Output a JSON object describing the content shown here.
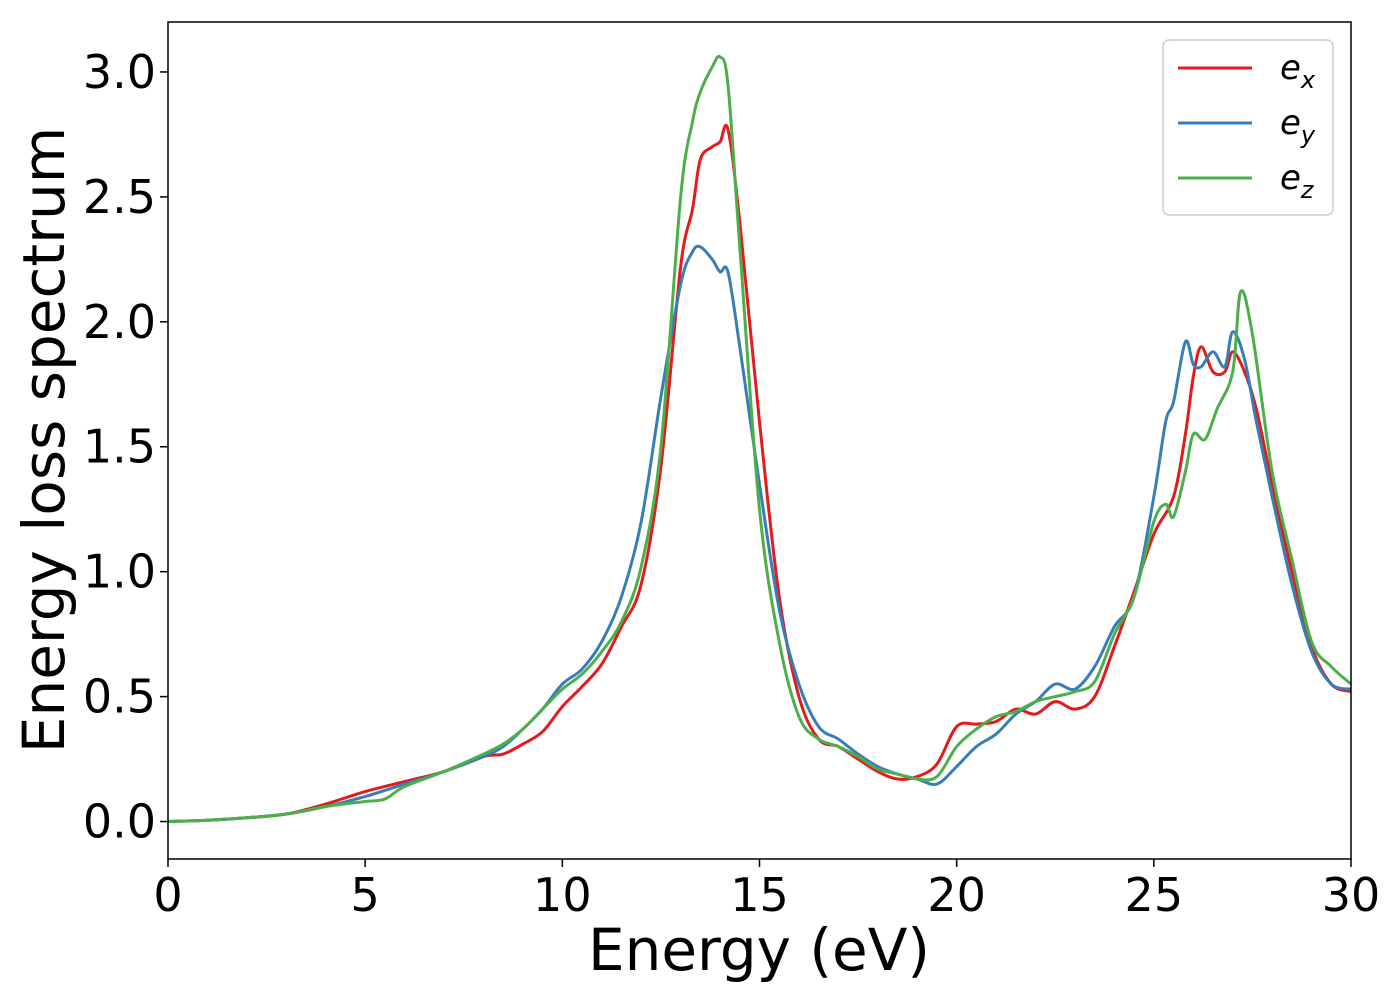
{
  "chart_data": {
    "type": "line",
    "xlabel": "Energy (eV)",
    "ylabel": "Energy loss spectrum",
    "xlim": [
      0,
      30
    ],
    "ylim": [
      -0.15,
      3.2
    ],
    "xticks": [
      0,
      5,
      10,
      15,
      20,
      25,
      30
    ],
    "xtick_labels": [
      "0",
      "5",
      "10",
      "15",
      "20",
      "25",
      "30"
    ],
    "yticks": [
      0.0,
      0.5,
      1.0,
      1.5,
      2.0,
      2.5,
      3.0
    ],
    "ytick_labels": [
      "0.0",
      "0.5",
      "1.0",
      "1.5",
      "2.0",
      "2.5",
      "3.0"
    ],
    "grid": false,
    "legend_position": "top-right",
    "series": [
      {
        "name": "e",
        "subscript": "x",
        "color": "#e41a1c",
        "x": [
          0,
          1,
          2,
          3,
          4,
          5,
          6,
          7,
          8,
          8.5,
          9,
          9.5,
          10,
          10.5,
          11,
          11.5,
          12,
          12.5,
          13,
          13.3,
          13.5,
          13.8,
          14,
          14.2,
          14.5,
          15,
          15.5,
          16,
          16.5,
          17,
          17.5,
          18,
          18.5,
          19,
          19.5,
          20,
          20.5,
          21,
          21.5,
          22,
          22.5,
          23,
          23.5,
          24,
          24.5,
          25,
          25.5,
          25.8,
          26,
          26.2,
          26.5,
          26.8,
          27,
          27.3,
          27.6,
          28,
          28.5,
          29,
          29.5,
          30
        ],
        "y": [
          0,
          0.005,
          0.015,
          0.03,
          0.07,
          0.12,
          0.16,
          0.2,
          0.26,
          0.27,
          0.31,
          0.36,
          0.46,
          0.54,
          0.63,
          0.78,
          0.95,
          1.42,
          2.22,
          2.45,
          2.65,
          2.7,
          2.72,
          2.77,
          2.4,
          1.6,
          0.9,
          0.5,
          0.33,
          0.3,
          0.25,
          0.2,
          0.17,
          0.18,
          0.23,
          0.38,
          0.39,
          0.4,
          0.45,
          0.43,
          0.48,
          0.45,
          0.5,
          0.7,
          0.92,
          1.15,
          1.3,
          1.55,
          1.78,
          1.9,
          1.8,
          1.8,
          1.88,
          1.8,
          1.65,
          1.35,
          1.0,
          0.7,
          0.55,
          0.52
        ]
      },
      {
        "name": "e",
        "subscript": "y",
        "color": "#377eb8",
        "x": [
          0,
          1,
          2,
          3,
          4,
          5,
          6,
          7,
          8,
          8.5,
          9,
          9.5,
          10,
          10.5,
          11,
          11.5,
          12,
          12.5,
          13,
          13.3,
          13.5,
          13.8,
          14,
          14.2,
          14.5,
          15,
          15.5,
          16,
          16.5,
          17,
          17.5,
          18,
          18.5,
          19,
          19.5,
          20,
          20.5,
          21,
          21.5,
          22,
          22.5,
          23,
          23.5,
          24,
          24.5,
          25,
          25.3,
          25.5,
          25.8,
          26,
          26.2,
          26.5,
          26.8,
          27,
          27.3,
          27.6,
          28,
          28.5,
          29,
          29.5,
          30
        ],
        "y": [
          0,
          0.005,
          0.015,
          0.03,
          0.06,
          0.1,
          0.15,
          0.2,
          0.26,
          0.3,
          0.37,
          0.45,
          0.55,
          0.61,
          0.72,
          0.9,
          1.2,
          1.7,
          2.15,
          2.28,
          2.3,
          2.25,
          2.2,
          2.2,
          1.9,
          1.35,
          0.85,
          0.55,
          0.38,
          0.33,
          0.27,
          0.22,
          0.19,
          0.17,
          0.15,
          0.22,
          0.3,
          0.35,
          0.43,
          0.48,
          0.55,
          0.53,
          0.62,
          0.78,
          0.9,
          1.3,
          1.6,
          1.68,
          1.92,
          1.83,
          1.82,
          1.88,
          1.82,
          1.96,
          1.85,
          1.6,
          1.3,
          0.95,
          0.68,
          0.55,
          0.53
        ]
      },
      {
        "name": "e",
        "subscript": "z",
        "color": "#4daf4a",
        "x": [
          0,
          1,
          2,
          3,
          4,
          5,
          5.5,
          6,
          7,
          8,
          8.5,
          9,
          9.5,
          10,
          10.5,
          11,
          11.5,
          12,
          12.5,
          13,
          13.3,
          13.5,
          13.8,
          14,
          14.2,
          14.5,
          15,
          15.5,
          16,
          16.5,
          17,
          17.5,
          18,
          18.5,
          19,
          19.5,
          20,
          20.5,
          21,
          21.5,
          22,
          22.5,
          23,
          23.5,
          24,
          24.5,
          25,
          25.3,
          25.5,
          25.8,
          26,
          26.3,
          26.6,
          27,
          27.2,
          27.5,
          28,
          28.5,
          29,
          29.5,
          30
        ],
        "y": [
          0,
          0.005,
          0.015,
          0.03,
          0.06,
          0.08,
          0.09,
          0.14,
          0.2,
          0.27,
          0.31,
          0.37,
          0.45,
          0.53,
          0.59,
          0.68,
          0.8,
          1.02,
          1.5,
          2.5,
          2.8,
          2.92,
          3.02,
          3.06,
          2.95,
          2.3,
          1.25,
          0.72,
          0.42,
          0.33,
          0.3,
          0.26,
          0.21,
          0.19,
          0.17,
          0.18,
          0.3,
          0.37,
          0.42,
          0.44,
          0.48,
          0.5,
          0.52,
          0.56,
          0.75,
          0.9,
          1.2,
          1.27,
          1.22,
          1.4,
          1.55,
          1.53,
          1.65,
          1.8,
          2.12,
          1.95,
          1.4,
          1.05,
          0.72,
          0.62,
          0.55
        ]
      }
    ]
  }
}
